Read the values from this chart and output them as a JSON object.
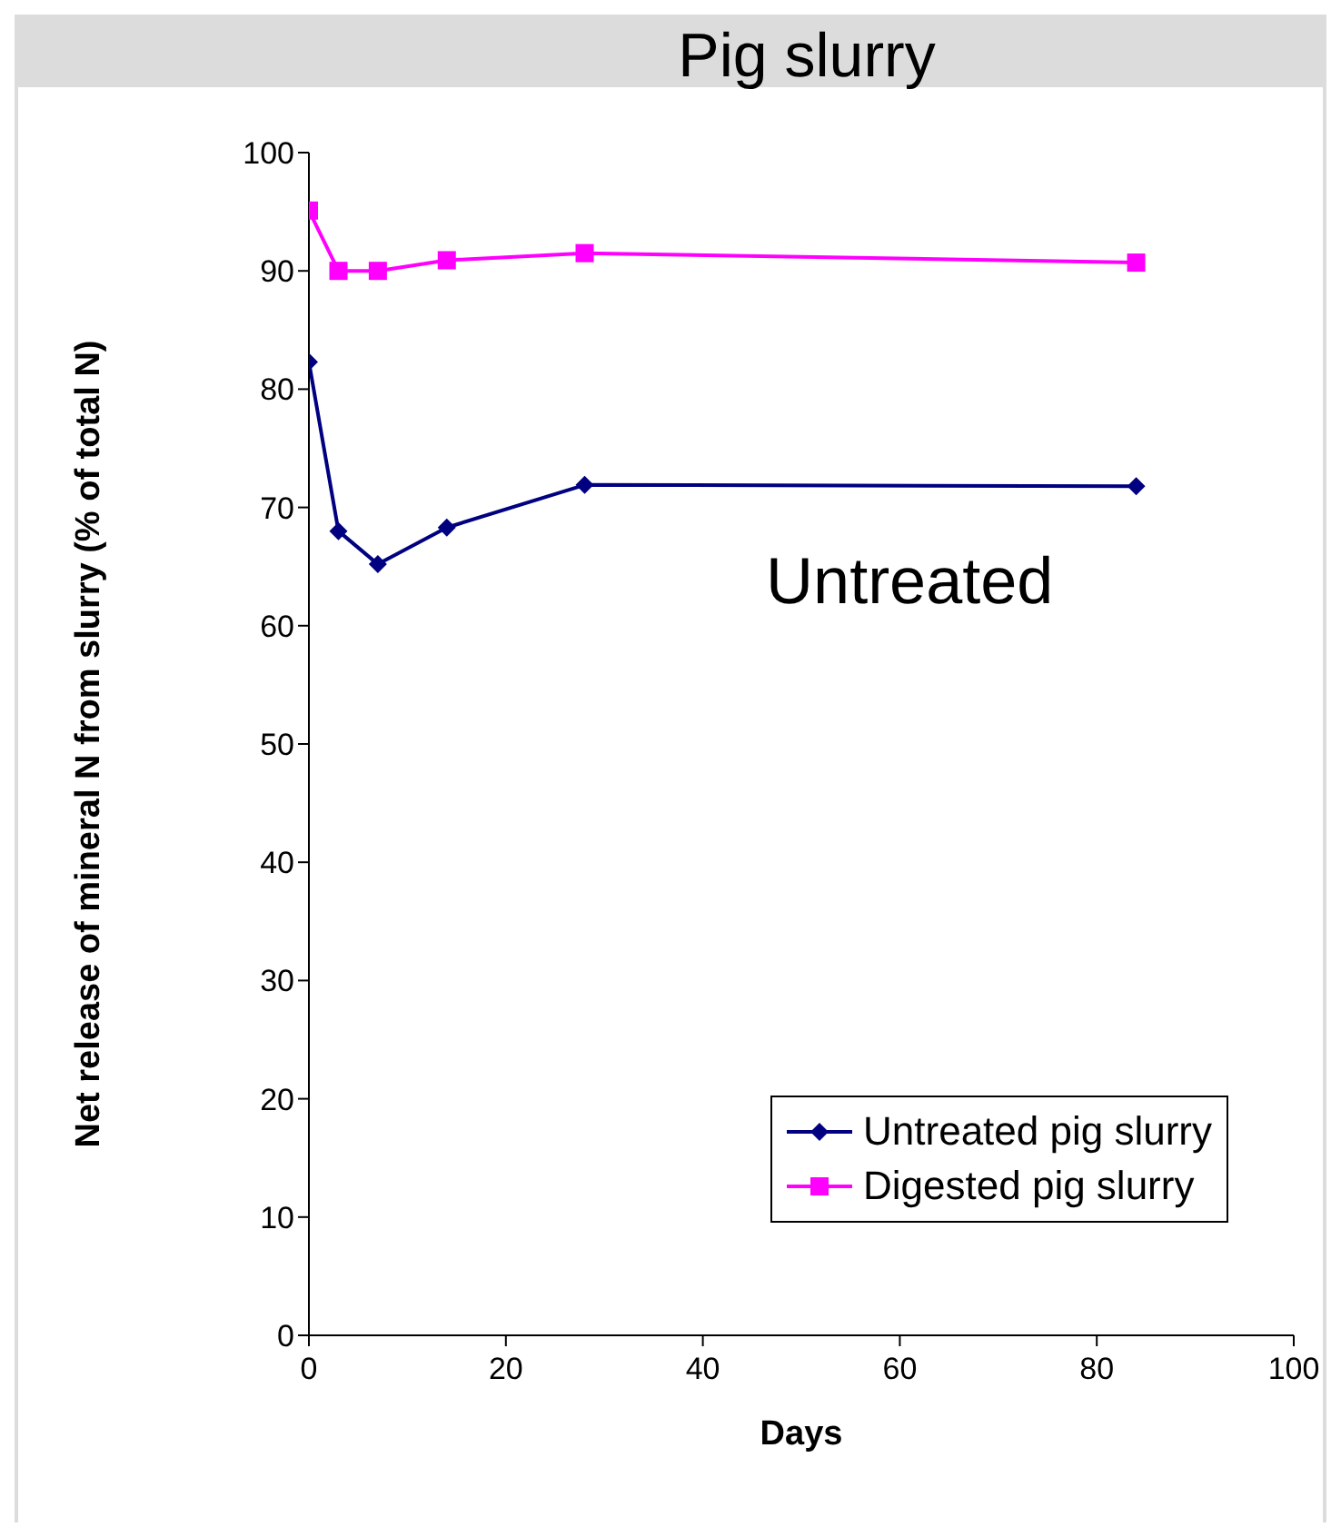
{
  "chart_data": {
    "type": "line",
    "title": "Pig slurry",
    "xlabel": "Days",
    "ylabel": "Net release of mineral N from slurry (% of total N)",
    "x": [
      0,
      3,
      7,
      14,
      28,
      84
    ],
    "series": [
      {
        "name": "Untreated pig slurry",
        "color": "#000080",
        "marker": "diamond",
        "values": [
          82.3,
          68,
          65.2,
          68.3,
          71.9,
          71.8
        ]
      },
      {
        "name": "Digested pig slurry",
        "color": "#ff00ff",
        "marker": "square",
        "values": [
          95.1,
          90,
          90,
          90.9,
          91.5,
          90.7
        ]
      }
    ],
    "xlim": [
      0,
      100
    ],
    "xticks": [
      0,
      20,
      40,
      60,
      80,
      100
    ],
    "ylim": [
      0,
      100
    ],
    "yticks": [
      0,
      10,
      20,
      30,
      40,
      50,
      60,
      70,
      80,
      90,
      100
    ],
    "grid": false,
    "legend": "bottom right",
    "line_style": "solid",
    "annotations": [
      "Untreated"
    ]
  }
}
